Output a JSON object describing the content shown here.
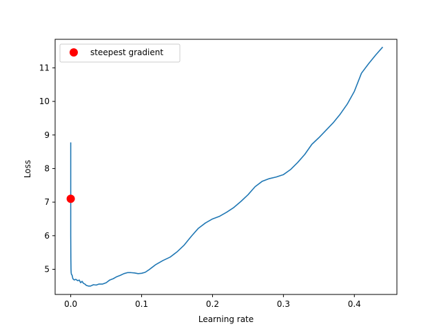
{
  "chart_data": {
    "type": "line",
    "xlabel": "Learning rate",
    "ylabel": "Loss",
    "xlim": [
      -0.022,
      0.46
    ],
    "ylim": [
      4.25,
      11.85
    ],
    "xticks": [
      0.0,
      0.1,
      0.2,
      0.3,
      0.4
    ],
    "xtick_labels": [
      "0.0",
      "0.1",
      "0.2",
      "0.3",
      "0.4"
    ],
    "yticks": [
      5,
      6,
      7,
      8,
      9,
      10,
      11
    ],
    "ytick_labels": [
      "5",
      "6",
      "7",
      "8",
      "9",
      "10",
      "11"
    ],
    "grid": false,
    "legend_position": "top-left",
    "series": [
      {
        "color": "#1f77b4",
        "x": [
          0.0,
          0.0,
          0.0002,
          0.0004,
          0.0006,
          0.001,
          0.002,
          0.003,
          0.005,
          0.007,
          0.01,
          0.012,
          0.014,
          0.016,
          0.018,
          0.02,
          0.022,
          0.025,
          0.028,
          0.032,
          0.036,
          0.04,
          0.045,
          0.05,
          0.055,
          0.06,
          0.065,
          0.07,
          0.075,
          0.08,
          0.085,
          0.09,
          0.095,
          0.1,
          0.105,
          0.11,
          0.115,
          0.12,
          0.13,
          0.14,
          0.15,
          0.16,
          0.17,
          0.18,
          0.19,
          0.2,
          0.21,
          0.22,
          0.23,
          0.24,
          0.25,
          0.26,
          0.27,
          0.28,
          0.29,
          0.3,
          0.31,
          0.32,
          0.33,
          0.34,
          0.35,
          0.36,
          0.37,
          0.38,
          0.39,
          0.4,
          0.41,
          0.42,
          0.43,
          0.44
        ],
        "y": [
          8.78,
          6.0,
          5.3,
          5.0,
          4.9,
          4.85,
          4.82,
          4.72,
          4.68,
          4.7,
          4.66,
          4.68,
          4.6,
          4.64,
          4.58,
          4.56,
          4.52,
          4.5,
          4.5,
          4.54,
          4.53,
          4.56,
          4.56,
          4.6,
          4.68,
          4.72,
          4.78,
          4.82,
          4.87,
          4.9,
          4.9,
          4.89,
          4.87,
          4.88,
          4.91,
          4.98,
          5.06,
          5.14,
          5.26,
          5.36,
          5.52,
          5.72,
          5.98,
          6.22,
          6.38,
          6.5,
          6.58,
          6.7,
          6.84,
          7.02,
          7.22,
          7.46,
          7.62,
          7.7,
          7.75,
          7.82,
          7.97,
          8.18,
          8.42,
          8.72,
          8.92,
          9.14,
          9.36,
          9.62,
          9.92,
          10.3,
          10.84,
          11.12,
          11.38,
          11.62
        ]
      }
    ],
    "points": [
      {
        "name": "steepest gradient",
        "x": 0.0,
        "y": 7.1,
        "color": "#ff0000"
      }
    ],
    "legend": [
      {
        "label": "steepest gradient",
        "marker": "circle",
        "color": "#ff0000"
      }
    ]
  }
}
